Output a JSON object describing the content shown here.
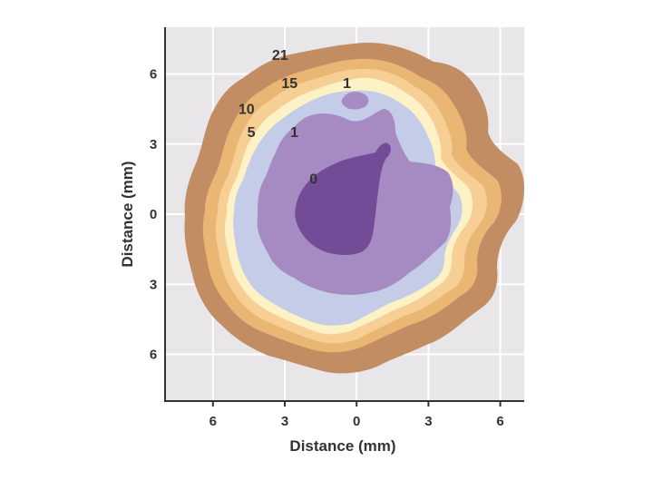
{
  "chart_data": {
    "type": "contour",
    "title": "",
    "xlabel": "Distance (mm)",
    "ylabel": "Distance (mm)",
    "xlim": [
      -8,
      7
    ],
    "ylim": [
      -8,
      8
    ],
    "grid": true,
    "x_tick_values": [
      -6,
      -3,
      0,
      3,
      6
    ],
    "x_tick_labels": [
      "6",
      "3",
      "0",
      "3",
      "6"
    ],
    "y_tick_values": [
      6,
      3,
      0,
      -3,
      -6
    ],
    "y_tick_labels": [
      "6",
      "3",
      "0",
      "3",
      "6"
    ],
    "contour_levels": [
      {
        "label": "21",
        "color": "#c38d63"
      },
      {
        "label": "15",
        "color": "#eab674"
      },
      {
        "label": "10",
        "color": "#f7cf95"
      },
      {
        "label": "5",
        "color": "#fcf2c6"
      },
      {
        "label": "1",
        "color": "#c5cce8"
      },
      {
        "label": "1",
        "color": "#a68bc3"
      },
      {
        "label": "0",
        "color": "#734c98"
      }
    ],
    "annotations": [
      {
        "text": "21",
        "x": -3.2,
        "y": 6.6
      },
      {
        "text": "15",
        "x": -2.8,
        "y": 5.4
      },
      {
        "text": "10",
        "x": -4.6,
        "y": 4.3
      },
      {
        "text": "5",
        "x": -4.4,
        "y": 3.3
      },
      {
        "text": "1",
        "x": -2.6,
        "y": 3.3
      },
      {
        "text": "1",
        "x": -0.4,
        "y": 5.4
      },
      {
        "text": "0",
        "x": -1.8,
        "y": 1.3
      }
    ],
    "colors": {
      "plot_bg": "#e8e6e8",
      "grid": "#ffffff",
      "axis": "#333333"
    }
  }
}
